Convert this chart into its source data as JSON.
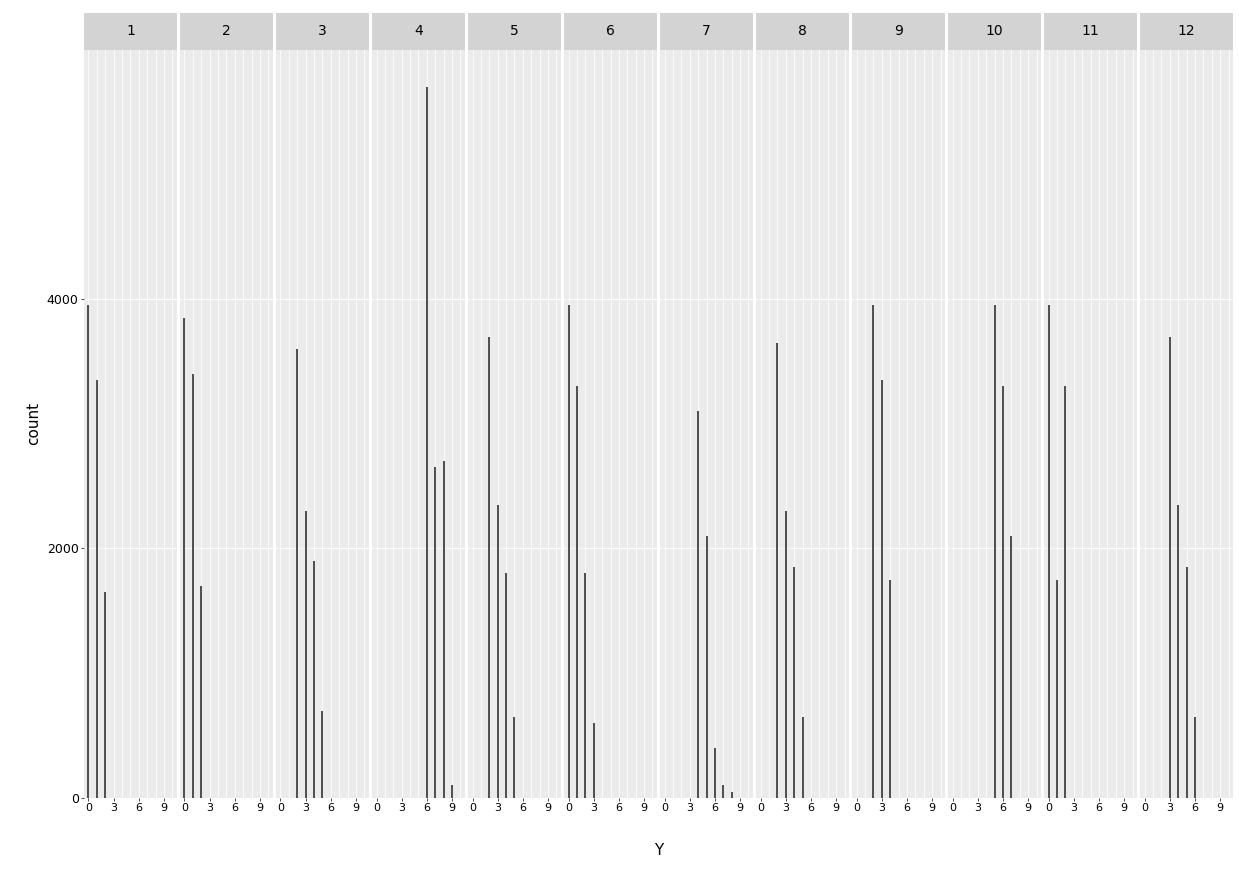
{
  "facets": [
    1,
    2,
    3,
    4,
    5,
    6,
    7,
    8,
    9,
    10,
    11,
    12
  ],
  "panel_data": {
    "1": {
      "x": [
        0,
        1,
        2
      ],
      "y": [
        3950,
        3350,
        1650
      ]
    },
    "2": {
      "x": [
        0,
        1,
        2
      ],
      "y": [
        3850,
        3400,
        1700
      ]
    },
    "3": {
      "x": [
        2,
        3,
        4,
        5
      ],
      "y": [
        3600,
        2300,
        1900,
        700
      ]
    },
    "4": {
      "x": [
        6,
        7,
        8,
        9
      ],
      "y": [
        5700,
        2650,
        2700,
        100
      ]
    },
    "5": {
      "x": [
        2,
        3,
        4,
        5
      ],
      "y": [
        3700,
        2350,
        1800,
        650
      ]
    },
    "6": {
      "x": [
        0,
        1,
        2,
        3
      ],
      "y": [
        3950,
        3300,
        1800,
        600
      ]
    },
    "7": {
      "x": [
        4,
        5,
        6,
        7,
        8
      ],
      "y": [
        3100,
        2100,
        400,
        100,
        50
      ]
    },
    "8": {
      "x": [
        2,
        3,
        4,
        5
      ],
      "y": [
        3650,
        2300,
        1850,
        650
      ]
    },
    "9": {
      "x": [
        2,
        3,
        4
      ],
      "y": [
        3950,
        3350,
        1750
      ]
    },
    "10": {
      "x": [
        5,
        6,
        7
      ],
      "y": [
        3950,
        3300,
        2100
      ]
    },
    "11": {
      "x": [
        0,
        1,
        2
      ],
      "y": [
        3950,
        1750,
        3300
      ]
    },
    "12": {
      "x": [
        3,
        4,
        5,
        6
      ],
      "y": [
        3700,
        2350,
        1850,
        650
      ]
    }
  },
  "ylim": [
    0,
    6000
  ],
  "yticks": [
    0,
    2000,
    4000
  ],
  "ytick_labels": [
    "0",
    "2000",
    "4000"
  ],
  "xlabel": "Y",
  "ylabel": "count",
  "xticks": [
    0,
    3,
    6,
    9
  ],
  "xlim": [
    -0.5,
    10.5
  ],
  "bg_color": "#EBEBEB",
  "strip_bg_color": "#D3D3D3",
  "bar_color": "#4D4D4D",
  "grid_color": "#FFFFFF",
  "panel_gap_color": "#FFFFFF",
  "n_vert_gridlines": 11,
  "n_horiz_gridlines": 3
}
